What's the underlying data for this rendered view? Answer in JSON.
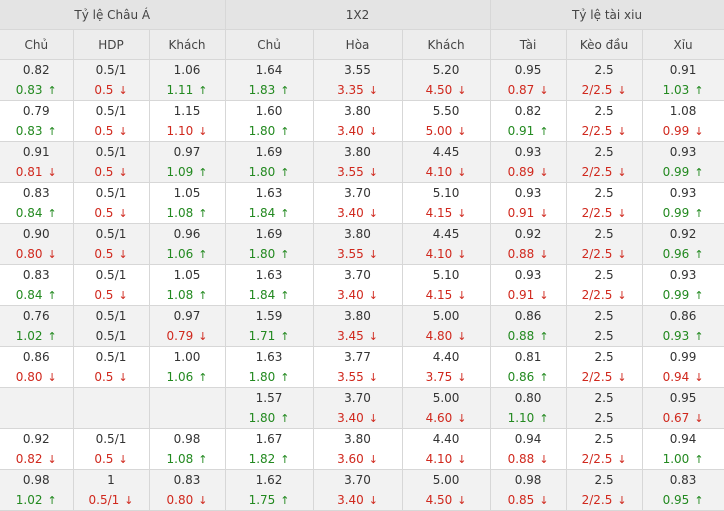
{
  "headers": {
    "groups": [
      "Tỷ lệ Châu Á",
      "1X2",
      "Tỷ lệ tài xiu"
    ],
    "columns": [
      "Chủ",
      "HDP",
      "Khách",
      "Chủ",
      "Hòa",
      "Khách",
      "Tài",
      "Kèo đầu",
      "Xỉu"
    ]
  },
  "colors": {
    "up": "#22891f",
    "down": "#d0281d"
  },
  "arrows": {
    "up": "↑",
    "down": "↓",
    "same": ""
  },
  "rows": [
    [
      {
        "open": "0.82",
        "cur": "0.83",
        "dir": "up"
      },
      {
        "open": "0.5/1",
        "cur": "0.5",
        "dir": "down"
      },
      {
        "open": "1.06",
        "cur": "1.11",
        "dir": "up"
      },
      {
        "open": "1.64",
        "cur": "1.83",
        "dir": "up"
      },
      {
        "open": "3.55",
        "cur": "3.35",
        "dir": "down"
      },
      {
        "open": "5.20",
        "cur": "4.50",
        "dir": "down"
      },
      {
        "open": "0.95",
        "cur": "0.87",
        "dir": "down"
      },
      {
        "open": "2.5",
        "cur": "2/2.5",
        "dir": "down"
      },
      {
        "open": "0.91",
        "cur": "1.03",
        "dir": "up"
      }
    ],
    [
      {
        "open": "0.79",
        "cur": "0.83",
        "dir": "up"
      },
      {
        "open": "0.5/1",
        "cur": "0.5",
        "dir": "down"
      },
      {
        "open": "1.15",
        "cur": "1.10",
        "dir": "down"
      },
      {
        "open": "1.60",
        "cur": "1.80",
        "dir": "up"
      },
      {
        "open": "3.80",
        "cur": "3.40",
        "dir": "down"
      },
      {
        "open": "5.50",
        "cur": "5.00",
        "dir": "down"
      },
      {
        "open": "0.82",
        "cur": "0.91",
        "dir": "up"
      },
      {
        "open": "2.5",
        "cur": "2/2.5",
        "dir": "down"
      },
      {
        "open": "1.08",
        "cur": "0.99",
        "dir": "down"
      }
    ],
    [
      {
        "open": "0.91",
        "cur": "0.81",
        "dir": "down"
      },
      {
        "open": "0.5/1",
        "cur": "0.5",
        "dir": "down"
      },
      {
        "open": "0.97",
        "cur": "1.09",
        "dir": "up"
      },
      {
        "open": "1.69",
        "cur": "1.80",
        "dir": "up"
      },
      {
        "open": "3.80",
        "cur": "3.55",
        "dir": "down"
      },
      {
        "open": "4.45",
        "cur": "4.10",
        "dir": "down"
      },
      {
        "open": "0.93",
        "cur": "0.89",
        "dir": "down"
      },
      {
        "open": "2.5",
        "cur": "2/2.5",
        "dir": "down"
      },
      {
        "open": "0.93",
        "cur": "0.99",
        "dir": "up"
      }
    ],
    [
      {
        "open": "0.83",
        "cur": "0.84",
        "dir": "up"
      },
      {
        "open": "0.5/1",
        "cur": "0.5",
        "dir": "down"
      },
      {
        "open": "1.05",
        "cur": "1.08",
        "dir": "up"
      },
      {
        "open": "1.63",
        "cur": "1.84",
        "dir": "up"
      },
      {
        "open": "3.70",
        "cur": "3.40",
        "dir": "down"
      },
      {
        "open": "5.10",
        "cur": "4.15",
        "dir": "down"
      },
      {
        "open": "0.93",
        "cur": "0.91",
        "dir": "down"
      },
      {
        "open": "2.5",
        "cur": "2/2.5",
        "dir": "down"
      },
      {
        "open": "0.93",
        "cur": "0.99",
        "dir": "up"
      }
    ],
    [
      {
        "open": "0.90",
        "cur": "0.80",
        "dir": "down"
      },
      {
        "open": "0.5/1",
        "cur": "0.5",
        "dir": "down"
      },
      {
        "open": "0.96",
        "cur": "1.06",
        "dir": "up"
      },
      {
        "open": "1.69",
        "cur": "1.80",
        "dir": "up"
      },
      {
        "open": "3.80",
        "cur": "3.55",
        "dir": "down"
      },
      {
        "open": "4.45",
        "cur": "4.10",
        "dir": "down"
      },
      {
        "open": "0.92",
        "cur": "0.88",
        "dir": "down"
      },
      {
        "open": "2.5",
        "cur": "2/2.5",
        "dir": "down"
      },
      {
        "open": "0.92",
        "cur": "0.96",
        "dir": "up"
      }
    ],
    [
      {
        "open": "0.83",
        "cur": "0.84",
        "dir": "up"
      },
      {
        "open": "0.5/1",
        "cur": "0.5",
        "dir": "down"
      },
      {
        "open": "1.05",
        "cur": "1.08",
        "dir": "up"
      },
      {
        "open": "1.63",
        "cur": "1.84",
        "dir": "up"
      },
      {
        "open": "3.70",
        "cur": "3.40",
        "dir": "down"
      },
      {
        "open": "5.10",
        "cur": "4.15",
        "dir": "down"
      },
      {
        "open": "0.93",
        "cur": "0.91",
        "dir": "down"
      },
      {
        "open": "2.5",
        "cur": "2/2.5",
        "dir": "down"
      },
      {
        "open": "0.93",
        "cur": "0.99",
        "dir": "up"
      }
    ],
    [
      {
        "open": "0.76",
        "cur": "1.02",
        "dir": "up"
      },
      {
        "open": "0.5/1",
        "cur": "0.5/1",
        "dir": "same"
      },
      {
        "open": "0.97",
        "cur": "0.79",
        "dir": "down"
      },
      {
        "open": "1.59",
        "cur": "1.71",
        "dir": "up"
      },
      {
        "open": "3.80",
        "cur": "3.45",
        "dir": "down"
      },
      {
        "open": "5.00",
        "cur": "4.80",
        "dir": "down"
      },
      {
        "open": "0.86",
        "cur": "0.88",
        "dir": "up"
      },
      {
        "open": "2.5",
        "cur": "2.5",
        "dir": "same"
      },
      {
        "open": "0.86",
        "cur": "0.93",
        "dir": "up"
      }
    ],
    [
      {
        "open": "0.86",
        "cur": "0.80",
        "dir": "down"
      },
      {
        "open": "0.5/1",
        "cur": "0.5",
        "dir": "down"
      },
      {
        "open": "1.00",
        "cur": "1.06",
        "dir": "up"
      },
      {
        "open": "1.63",
        "cur": "1.80",
        "dir": "up"
      },
      {
        "open": "3.77",
        "cur": "3.55",
        "dir": "down"
      },
      {
        "open": "4.40",
        "cur": "3.75",
        "dir": "down"
      },
      {
        "open": "0.81",
        "cur": "0.86",
        "dir": "up"
      },
      {
        "open": "2.5",
        "cur": "2/2.5",
        "dir": "down"
      },
      {
        "open": "0.99",
        "cur": "0.94",
        "dir": "down"
      }
    ],
    [
      {
        "open": "",
        "cur": "",
        "dir": "same"
      },
      {
        "open": "",
        "cur": "",
        "dir": "same"
      },
      {
        "open": "",
        "cur": "",
        "dir": "same"
      },
      {
        "open": "1.57",
        "cur": "1.80",
        "dir": "up"
      },
      {
        "open": "3.70",
        "cur": "3.40",
        "dir": "down"
      },
      {
        "open": "5.00",
        "cur": "4.60",
        "dir": "down"
      },
      {
        "open": "0.80",
        "cur": "1.10",
        "dir": "up"
      },
      {
        "open": "2.5",
        "cur": "2.5",
        "dir": "same"
      },
      {
        "open": "0.95",
        "cur": "0.67",
        "dir": "down"
      }
    ],
    [
      {
        "open": "0.92",
        "cur": "0.82",
        "dir": "down"
      },
      {
        "open": "0.5/1",
        "cur": "0.5",
        "dir": "down"
      },
      {
        "open": "0.98",
        "cur": "1.08",
        "dir": "up"
      },
      {
        "open": "1.67",
        "cur": "1.82",
        "dir": "up"
      },
      {
        "open": "3.80",
        "cur": "3.60",
        "dir": "down"
      },
      {
        "open": "4.40",
        "cur": "4.10",
        "dir": "down"
      },
      {
        "open": "0.94",
        "cur": "0.88",
        "dir": "down"
      },
      {
        "open": "2.5",
        "cur": "2/2.5",
        "dir": "down"
      },
      {
        "open": "0.94",
        "cur": "1.00",
        "dir": "up"
      }
    ],
    [
      {
        "open": "0.98",
        "cur": "1.02",
        "dir": "up"
      },
      {
        "open": "1",
        "cur": "0.5/1",
        "dir": "down"
      },
      {
        "open": "0.83",
        "cur": "0.80",
        "dir": "down"
      },
      {
        "open": "1.62",
        "cur": "1.75",
        "dir": "up"
      },
      {
        "open": "3.70",
        "cur": "3.40",
        "dir": "down"
      },
      {
        "open": "5.00",
        "cur": "4.50",
        "dir": "down"
      },
      {
        "open": "0.98",
        "cur": "0.85",
        "dir": "down"
      },
      {
        "open": "2.5",
        "cur": "2/2.5",
        "dir": "down"
      },
      {
        "open": "0.83",
        "cur": "0.95",
        "dir": "up"
      }
    ]
  ]
}
